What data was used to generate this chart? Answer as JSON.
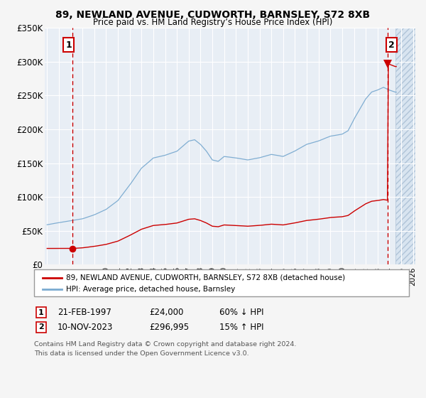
{
  "title": "89, NEWLAND AVENUE, CUDWORTH, BARNSLEY, S72 8XB",
  "subtitle": "Price paid vs. HM Land Registry’s House Price Index (HPI)",
  "ylim": [
    0,
    350000
  ],
  "xlim_start": 1994.8,
  "xlim_end": 2026.2,
  "yticks": [
    0,
    50000,
    100000,
    150000,
    200000,
    250000,
    300000,
    350000
  ],
  "ytick_labels": [
    "£0",
    "£50K",
    "£100K",
    "£150K",
    "£200K",
    "£250K",
    "£300K",
    "£350K"
  ],
  "xticks": [
    1995,
    1996,
    1997,
    1998,
    1999,
    2000,
    2001,
    2002,
    2003,
    2004,
    2005,
    2006,
    2007,
    2008,
    2009,
    2010,
    2011,
    2012,
    2013,
    2014,
    2015,
    2016,
    2017,
    2018,
    2019,
    2020,
    2021,
    2022,
    2023,
    2024,
    2025,
    2026
  ],
  "plot_bg": "#e8eef5",
  "grid_color": "#ffffff",
  "sale1_year": 1997.12,
  "sale1_price": 24000,
  "sale2_year": 2023.87,
  "sale2_price": 296995,
  "sale1_label": "1",
  "sale2_label": "2",
  "legend1": "89, NEWLAND AVENUE, CUDWORTH, BARNSLEY, S72 8XB (detached house)",
  "legend2": "HPI: Average price, detached house, Barnsley",
  "footnote3": "Contains HM Land Registry data © Crown copyright and database right 2024.",
  "footnote4": "This data is licensed under the Open Government Licence v3.0.",
  "red_line_color": "#cc0000",
  "blue_line_color": "#7aaad0",
  "marker_color": "#cc0000",
  "vline_color": "#cc0000",
  "hatch_start": 2024.5
}
